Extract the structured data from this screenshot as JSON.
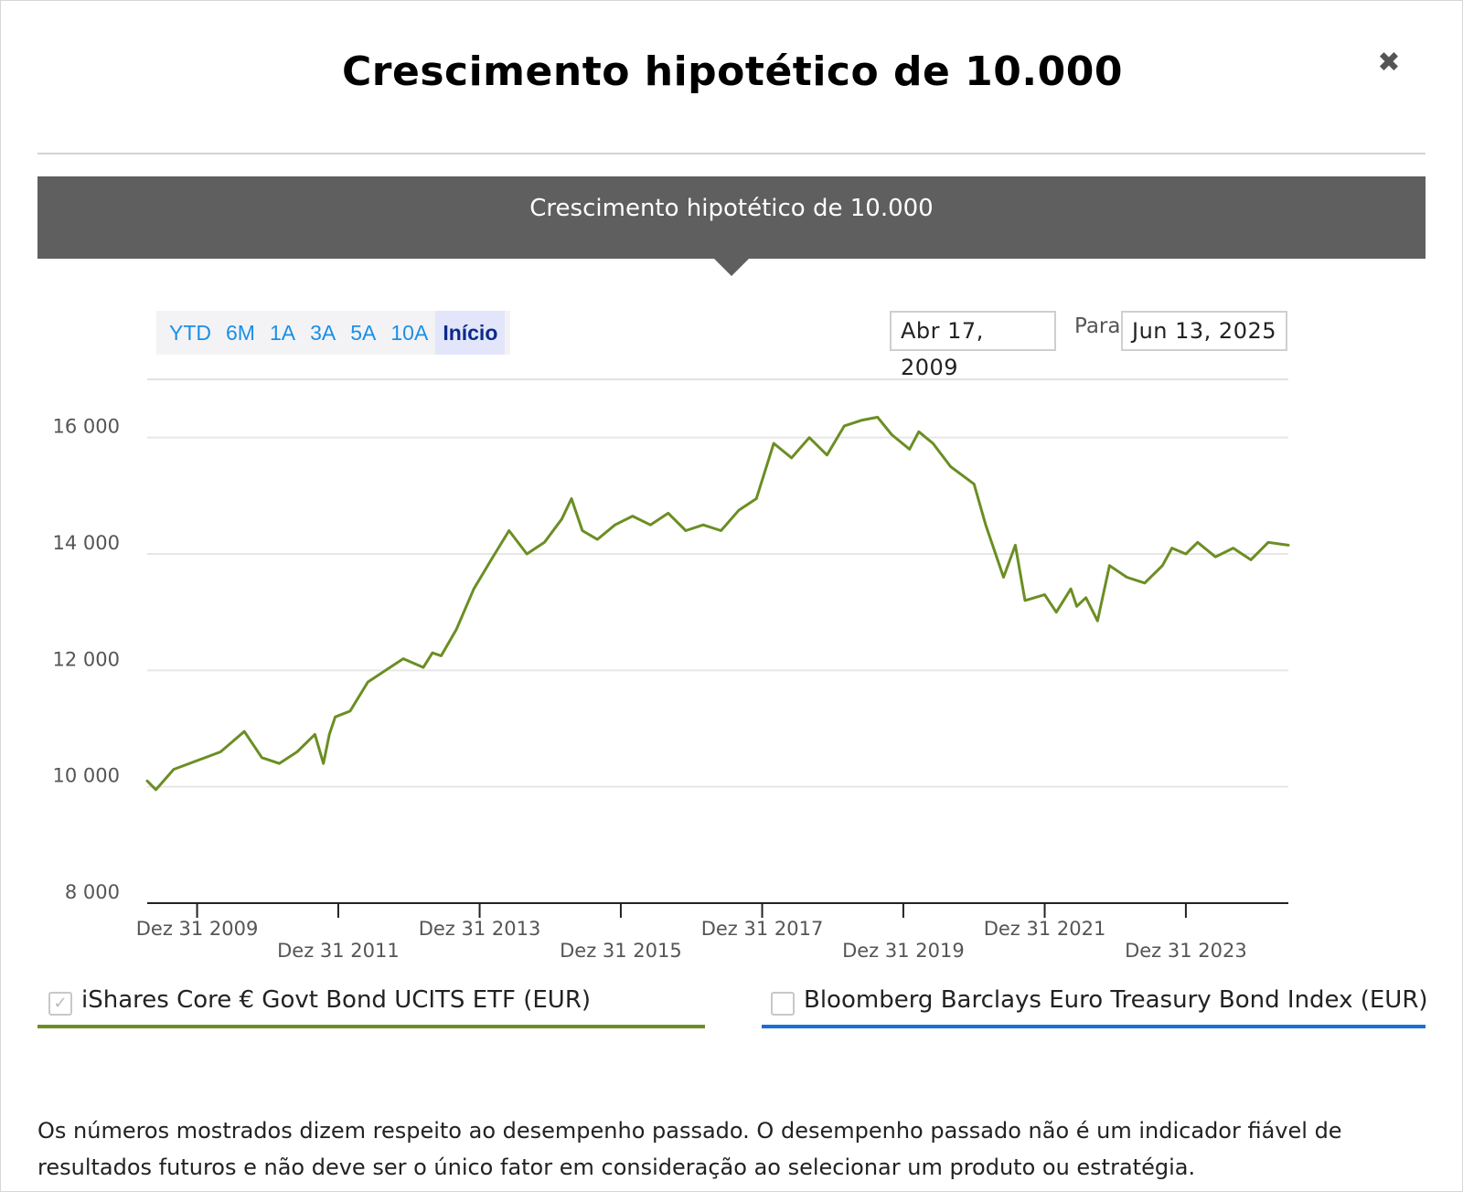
{
  "dialog": {
    "title": "Crescimento hipotético de 10.000",
    "close_icon": "close-icon",
    "close_glyph": "✖"
  },
  "banner": {
    "title": "Crescimento hipotético de 10.000"
  },
  "range_buttons": [
    {
      "label": "YTD",
      "active": false
    },
    {
      "label": "6M",
      "active": false
    },
    {
      "label": "1A",
      "active": false
    },
    {
      "label": "3A",
      "active": false
    },
    {
      "label": "5A",
      "active": false
    },
    {
      "label": "10A",
      "active": false
    },
    {
      "label": "Início",
      "active": true
    }
  ],
  "date_range": {
    "from": "Abr 17, 2009",
    "separator": "Para",
    "to": "Jun 13, 2025"
  },
  "legend": [
    {
      "label": "iShares Core € Govt Bond UCITS ETF (EUR)",
      "checked": true,
      "color": "#6b8e23",
      "check_glyph": "✓"
    },
    {
      "label": "Bloomberg Barclays Euro Treasury Bond Index (EUR)",
      "checked": false,
      "color": "#1a6fd6",
      "check_glyph": ""
    }
  ],
  "disclaimer": "Os números mostrados dizem respeito ao desempenho passado. O desempenho passado não é um indicador fiável de resultados futuros e não deve ser o único fator em consideração ao selecionar um produto ou estratégia.",
  "chart_data": {
    "type": "line",
    "title": "",
    "xlabel": "",
    "ylabel": "",
    "ylim": [
      8000,
      17000
    ],
    "yticks": [
      8000,
      10000,
      12000,
      14000,
      16000
    ],
    "ytick_labels": [
      "8 000",
      "10 000",
      "12 000",
      "14 000",
      "16 000"
    ],
    "xlim": [
      "2009-04-17",
      "2025-06-13"
    ],
    "xticks": [
      {
        "date": "2009-12-31",
        "label": "Dez 31 2009"
      },
      {
        "date": "2011-12-31",
        "label": "Dez 31 2011"
      },
      {
        "date": "2013-12-31",
        "label": "Dez 31 2013"
      },
      {
        "date": "2015-12-31",
        "label": "Dez 31 2015"
      },
      {
        "date": "2017-12-31",
        "label": "Dez 31 2017"
      },
      {
        "date": "2019-12-31",
        "label": "Dez 31 2019"
      },
      {
        "date": "2021-12-31",
        "label": "Dez 31 2021"
      },
      {
        "date": "2023-12-31",
        "label": "Dez 31 2023"
      }
    ],
    "grid": true,
    "legend_position": "bottom",
    "series": [
      {
        "name": "iShares Core € Govt Bond UCITS ETF (EUR)",
        "color": "#6b8e23",
        "x": [
          "2009-04-17",
          "2009-06-01",
          "2009-09-01",
          "2010-01-01",
          "2010-05-01",
          "2010-09-01",
          "2010-12-01",
          "2011-03-01",
          "2011-06-01",
          "2011-09-01",
          "2011-10-15",
          "2011-11-15",
          "2011-12-15",
          "2012-03-01",
          "2012-06-01",
          "2012-09-01",
          "2012-12-01",
          "2013-03-15",
          "2013-05-01",
          "2013-06-15",
          "2013-09-01",
          "2013-12-01",
          "2014-03-01",
          "2014-06-01",
          "2014-09-01",
          "2014-12-01",
          "2015-03-01",
          "2015-04-20",
          "2015-06-15",
          "2015-09-01",
          "2015-12-01",
          "2016-03-01",
          "2016-06-01",
          "2016-09-01",
          "2016-12-01",
          "2017-03-01",
          "2017-06-01",
          "2017-09-01",
          "2017-12-01",
          "2018-03-01",
          "2018-06-01",
          "2018-09-01",
          "2018-12-01",
          "2019-03-01",
          "2019-06-01",
          "2019-08-20",
          "2019-11-01",
          "2020-02-01",
          "2020-03-20",
          "2020-06-01",
          "2020-09-01",
          "2020-12-31",
          "2021-03-01",
          "2021-06-01",
          "2021-08-01",
          "2021-09-20",
          "2021-12-31",
          "2022-03-01",
          "2022-05-15",
          "2022-06-15",
          "2022-08-01",
          "2022-09-30",
          "2022-12-01",
          "2023-03-01",
          "2023-06-01",
          "2023-09-01",
          "2023-10-20",
          "2023-12-31",
          "2024-03-01",
          "2024-06-01",
          "2024-09-01",
          "2024-12-01",
          "2025-03-01",
          "2025-06-13"
        ],
        "values": [
          10100,
          9950,
          10300,
          10450,
          10600,
          10950,
          10500,
          10400,
          10600,
          10900,
          10400,
          10900,
          11200,
          11300,
          11800,
          12000,
          12200,
          12050,
          12300,
          12250,
          12700,
          13400,
          13900,
          14400,
          14000,
          14200,
          14600,
          14950,
          14400,
          14250,
          14500,
          14650,
          14500,
          14700,
          14400,
          14500,
          14400,
          14750,
          14950,
          15900,
          15650,
          16000,
          15700,
          16200,
          16300,
          16350,
          16050,
          15800,
          16100,
          15900,
          15500,
          15200,
          14500,
          13600,
          14150,
          13200,
          13300,
          13000,
          13400,
          13100,
          13250,
          12850,
          13800,
          13600,
          13500,
          13800,
          14100,
          14000,
          14200,
          13950,
          14100,
          13900,
          14200,
          14150
        ]
      }
    ]
  }
}
